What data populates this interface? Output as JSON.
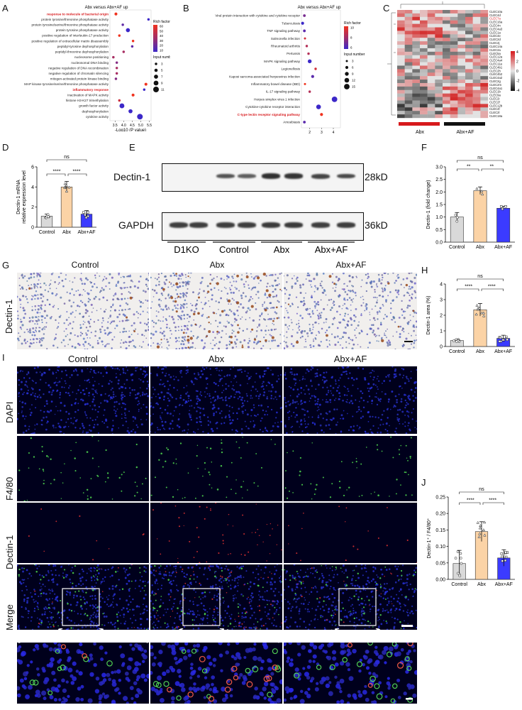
{
  "panels": {
    "A": {
      "letter": "A",
      "title": "Abx versus Abx+AF up",
      "xlabel": "-Log10 (P value)",
      "legend_rich": "Rich factor",
      "legend_input": "Input number",
      "rich_ticks": [
        "60",
        "50",
        "40",
        "30",
        "20",
        "10"
      ],
      "input_ticks": [
        "3",
        "5",
        "7",
        "9",
        "11"
      ]
    },
    "B": {
      "letter": "B",
      "title": "Abx versus Abx+AF up",
      "xlabel": "-Log10 (P value)",
      "legend_rich": "Rich factor",
      "legend_input": "Input number",
      "rich_ticks": [
        "10",
        "8",
        "6"
      ],
      "input_ticks": [
        "3",
        "6",
        "9",
        "12",
        "15"
      ]
    },
    "C": {
      "letter": "C",
      "group1": "Abx",
      "group2": "Abx+AF",
      "genes": [
        "CLEC10a",
        "CLEC4d",
        "CLEC7a",
        "CLEC16a",
        "CLEC4n",
        "CLEC4a3",
        "CLEC1a",
        "CLEC4e",
        "CLEC2d",
        "CLEC2j",
        "CLEC14a",
        "CLEC2a",
        "CLEC5a",
        "CLEC12a",
        "CLEC4a4",
        "CLEC11a",
        "CLEC4b1",
        "CLEC2h",
        "CLEC4b2",
        "CLEC4a2",
        "CLEC2g",
        "CLEC2m",
        "CLEC4a1",
        "CLEC1b",
        "CLEC9a",
        "CLEC2i",
        "CLEC2f",
        "CLEC12b",
        "CLEC4f",
        "CLEC2l",
        "CLEC18a"
      ],
      "highlight_gene": "CLEC7a",
      "scale_ticks": [
        "4",
        "2",
        "0",
        "-2",
        "-4"
      ]
    },
    "D": {
      "letter": "D",
      "ylabel1": "Dectin-1 mRNA",
      "ylabel2": "relative expression level",
      "sig": [
        "ns",
        "****",
        "****"
      ]
    },
    "E": {
      "letter": "E",
      "band1": "Dectin-1",
      "band2": "GAPDH",
      "kd1": "28kD",
      "kd2": "36kD",
      "lanes": [
        "D1KO",
        "Control",
        "Abx",
        "Abx+AF"
      ]
    },
    "F": {
      "letter": "F",
      "ylabel": "Dectin-1 (fold change)",
      "sig": [
        "ns",
        "**",
        "**"
      ]
    },
    "G": {
      "letter": "G",
      "row_label": "Dectin-1",
      "columns": [
        "Control",
        "Abx",
        "Abx+AF"
      ]
    },
    "H": {
      "letter": "H",
      "ylabel": "Dectin-1 area (%)",
      "sig": [
        "ns",
        "****",
        "****"
      ]
    },
    "I": {
      "letter": "I",
      "columns": [
        "Control",
        "Abx",
        "Abx+AF"
      ],
      "rows": [
        "DAPI",
        "F4/80",
        "Dectin-1",
        "Merge"
      ]
    },
    "J": {
      "letter": "J",
      "ylabel": "Dectin-1⁺ / F4/80⁺",
      "sig": [
        "ns",
        "****",
        "****"
      ]
    }
  },
  "chart_data": [
    {
      "id": "A",
      "type": "scatter",
      "title": "Abx versus Abx+AF up",
      "xlabel": "-Log10 (P value)",
      "xlim": [
        3.2,
        5.6
      ],
      "xticks": [
        "3.5",
        "4.0",
        "4.5",
        "5.0",
        "5.5"
      ],
      "terms": [
        {
          "label": "response to molecule of bacterial origin",
          "x": 3.55,
          "rich": 60,
          "n": 4,
          "highlight": true
        },
        {
          "label": "protein tyrosine/threonine phosphatase activity",
          "x": 5.45,
          "rich": 10,
          "n": 3
        },
        {
          "label": "protein tyrosine/serine/threonine phosphatase activity",
          "x": 3.95,
          "rich": 20,
          "n": 3
        },
        {
          "label": "protein tyrosine phosphatase activity",
          "x": 4.25,
          "rich": 10,
          "n": 7
        },
        {
          "label": "positive regulation of interleukin-17 production",
          "x": 3.75,
          "rich": 60,
          "n": 3
        },
        {
          "label": "positive regulation of extracellular matrix disassembly",
          "x": 4.55,
          "rich": 60,
          "n": 3
        },
        {
          "label": "peptidyl-tyrosine dephosphorylation",
          "x": 4.5,
          "rich": 20,
          "n": 3
        },
        {
          "label": "peptidyl-threonine dephosphorylation",
          "x": 4.0,
          "rich": 40,
          "n": 3
        },
        {
          "label": "nucleosome positioning",
          "x": 3.4,
          "rich": 40,
          "n": 3
        },
        {
          "label": "nucleosomal DNA binding",
          "x": 3.6,
          "rich": 30,
          "n": 3
        },
        {
          "label": "negative regulation of DNA recombination",
          "x": 3.6,
          "rich": 40,
          "n": 3
        },
        {
          "label": "negative regulation of chromatin silencing",
          "x": 3.6,
          "rich": 40,
          "n": 3
        },
        {
          "label": "mitogen-activated protein kinase binding",
          "x": 3.55,
          "rich": 30,
          "n": 3
        },
        {
          "label": "MAP kinase tyrosine/serine/threonine phosphatase activity",
          "x": 5.3,
          "rich": 60,
          "n": 4
        },
        {
          "label": "inflammatory response",
          "x": 5.2,
          "rich": 10,
          "n": 3,
          "highlight": true
        },
        {
          "label": "inactivation of MAPK activity",
          "x": 4.55,
          "rich": 60,
          "n": 4
        },
        {
          "label": "histone H3-K27 trimethylation",
          "x": 3.75,
          "rich": 50,
          "n": 3
        },
        {
          "label": "growth factor activity",
          "x": 3.9,
          "rich": 10,
          "n": 9
        },
        {
          "label": "dephosphorylation",
          "x": 4.4,
          "rich": 10,
          "n": 7
        },
        {
          "label": "cytokine activity",
          "x": 4.95,
          "rich": 10,
          "n": 11
        }
      ]
    },
    {
      "id": "B",
      "type": "scatter",
      "title": "Abx versus Abx+AF up",
      "xlabel": "-Log10 (P value)",
      "xlim": [
        1.3,
        4.6
      ],
      "xticks": [
        "2",
        "3",
        "4"
      ],
      "terms": [
        {
          "label": "Viral protein interaction with cytokine and cytokine receptor",
          "x": 1.55,
          "rich": 7,
          "n": 5
        },
        {
          "label": "Tuberculosis",
          "x": 1.4,
          "rich": 5,
          "n": 6
        },
        {
          "label": "TNF signaling pathway",
          "x": 1.55,
          "rich": 6,
          "n": 5
        },
        {
          "label": "Salmonella infection",
          "x": 1.6,
          "rich": 10,
          "n": 3
        },
        {
          "label": "Rheumatoid arthritis",
          "x": 1.75,
          "rich": 9,
          "n": 4
        },
        {
          "label": "Pertussis",
          "x": 1.9,
          "rich": 9,
          "n": 4
        },
        {
          "label": "MAPK signaling pathway",
          "x": 2.0,
          "rich": 5,
          "n": 9
        },
        {
          "label": "Legionellosis",
          "x": 2.5,
          "rich": 10,
          "n": 4
        },
        {
          "label": "Kaposi sarcoma-associated herpesvirus infection",
          "x": 2.25,
          "rich": 6,
          "n": 6
        },
        {
          "label": "Inflammatory bowel disease (IBD)",
          "x": 1.6,
          "rich": 11,
          "n": 3
        },
        {
          "label": "IL-17 signaling pathway",
          "x": 2.0,
          "rich": 9,
          "n": 4
        },
        {
          "label": "Herpes simplex virus 1 infection",
          "x": 4.1,
          "rich": 5,
          "n": 15
        },
        {
          "label": "Cytokine-cytokine receptor interaction",
          "x": 2.75,
          "rich": 5,
          "n": 12
        },
        {
          "label": "C-type lectin receptor signaling pathway",
          "x": 3.0,
          "rich": 11,
          "n": 6,
          "highlight": true
        },
        {
          "label": "Amoebiasis",
          "x": 1.55,
          "rich": 6,
          "n": 5
        }
      ]
    },
    {
      "id": "D",
      "type": "bar",
      "categories": [
        "Control",
        "Abx",
        "Abx+AF"
      ],
      "values": [
        1.1,
        4.0,
        1.3
      ],
      "errors": [
        0.2,
        0.55,
        0.35
      ],
      "ylim": [
        0,
        6
      ],
      "yticks": [
        "0",
        "2",
        "4",
        "6"
      ],
      "ylabel": "Dectin-1 mRNA relative expression level"
    },
    {
      "id": "F",
      "type": "bar",
      "categories": [
        "Control",
        "Abx",
        "Abx+AF"
      ],
      "values": [
        1.0,
        2.05,
        1.35
      ],
      "errors": [
        0.18,
        0.15,
        0.08
      ],
      "ylim": [
        0,
        3.0
      ],
      "yticks": [
        "0.0",
        "0.5",
        "1.0",
        "1.5",
        "2.0",
        "2.5",
        "3.0"
      ],
      "ylabel": "Dectin-1 (fold change)"
    },
    {
      "id": "H",
      "type": "bar",
      "categories": [
        "Control",
        "Abx",
        "Abx+AF"
      ],
      "values": [
        0.38,
        2.35,
        0.52
      ],
      "errors": [
        0.08,
        0.4,
        0.2
      ],
      "ylim": [
        0,
        4
      ],
      "yticks": [
        "0",
        "1",
        "2",
        "3",
        "4"
      ],
      "ylabel": "Dectin-1 area (%)"
    },
    {
      "id": "J",
      "type": "bar",
      "categories": [
        "Control",
        "Abx",
        "Abx+AF"
      ],
      "values": [
        0.048,
        0.145,
        0.065
      ],
      "errors": [
        0.04,
        0.03,
        0.025
      ],
      "ylim": [
        0,
        0.25
      ],
      "yticks": [
        "0.00",
        "0.05",
        "0.10",
        "0.15",
        "0.20",
        "0.25"
      ],
      "ylabel": "Dectin-1⁺ / F4/80⁺"
    }
  ],
  "colors": {
    "control": "#d9d9d9",
    "abx": "#fbd3a6",
    "abxaf": "#3b3bff",
    "highlight": "#d7191c",
    "heat_high": "#d7191c",
    "heat_low": "#111111"
  }
}
